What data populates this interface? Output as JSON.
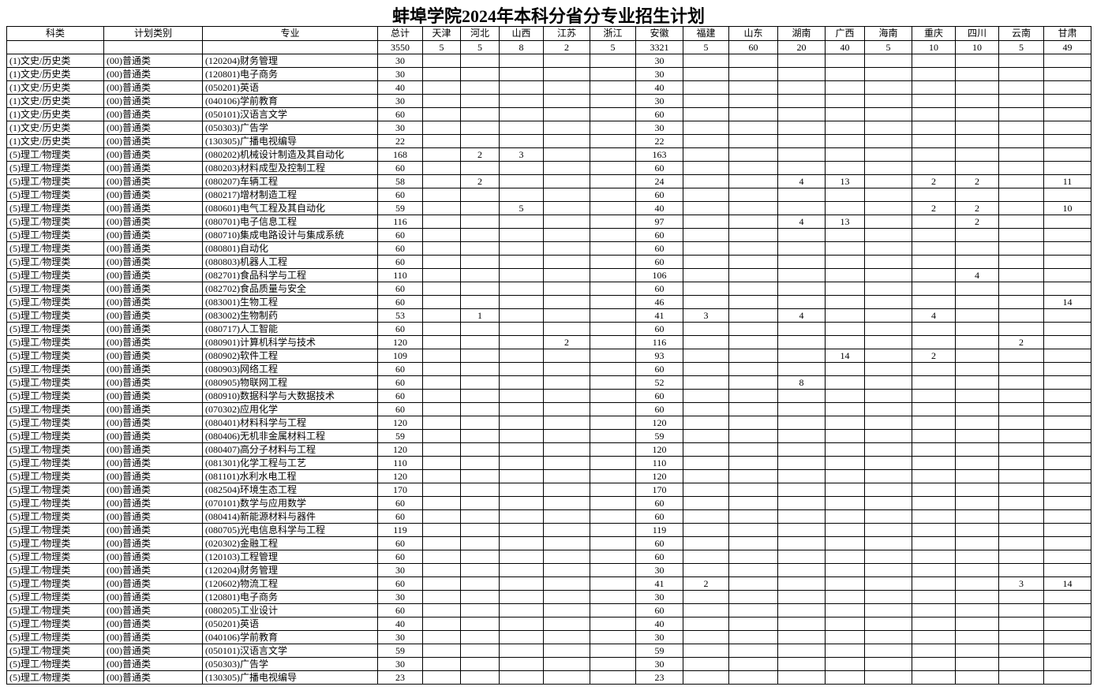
{
  "title": "蚌埠学院2024年本科分省分专业招生计划",
  "table": {
    "columns": [
      "科类",
      "计划类别",
      "专业",
      "总计",
      "天津",
      "河北",
      "山西",
      "江苏",
      "浙江",
      "安徽",
      "福建",
      "山东",
      "湖南",
      "广西",
      "海南",
      "重庆",
      "四川",
      "云南",
      "甘肃"
    ],
    "totals": [
      "",
      "",
      "",
      "3550",
      "5",
      "5",
      "8",
      "2",
      "5",
      "3321",
      "5",
      "60",
      "20",
      "40",
      "5",
      "10",
      "10",
      "5",
      "49"
    ],
    "rows": [
      [
        "(1)文史/历史类",
        "(00)普通类",
        "(120204)财务管理",
        "30",
        "",
        "",
        "",
        "",
        "",
        "30",
        "",
        "",
        "",
        "",
        "",
        "",
        "",
        "",
        ""
      ],
      [
        "(1)文史/历史类",
        "(00)普通类",
        "(120801)电子商务",
        "30",
        "",
        "",
        "",
        "",
        "",
        "30",
        "",
        "",
        "",
        "",
        "",
        "",
        "",
        "",
        ""
      ],
      [
        "(1)文史/历史类",
        "(00)普通类",
        "(050201)英语",
        "40",
        "",
        "",
        "",
        "",
        "",
        "40",
        "",
        "",
        "",
        "",
        "",
        "",
        "",
        "",
        ""
      ],
      [
        "(1)文史/历史类",
        "(00)普通类",
        "(040106)学前教育",
        "30",
        "",
        "",
        "",
        "",
        "",
        "30",
        "",
        "",
        "",
        "",
        "",
        "",
        "",
        "",
        ""
      ],
      [
        "(1)文史/历史类",
        "(00)普通类",
        "(050101)汉语言文学",
        "60",
        "",
        "",
        "",
        "",
        "",
        "60",
        "",
        "",
        "",
        "",
        "",
        "",
        "",
        "",
        ""
      ],
      [
        "(1)文史/历史类",
        "(00)普通类",
        "(050303)广告学",
        "30",
        "",
        "",
        "",
        "",
        "",
        "30",
        "",
        "",
        "",
        "",
        "",
        "",
        "",
        "",
        ""
      ],
      [
        "(1)文史/历史类",
        "(00)普通类",
        "(130305)广播电视编导",
        "22",
        "",
        "",
        "",
        "",
        "",
        "22",
        "",
        "",
        "",
        "",
        "",
        "",
        "",
        "",
        ""
      ],
      [
        "(5)理工/物理类",
        "(00)普通类",
        "(080202)机械设计制造及其自动化",
        "168",
        "",
        "2",
        "3",
        "",
        "",
        "163",
        "",
        "",
        "",
        "",
        "",
        "",
        "",
        "",
        ""
      ],
      [
        "(5)理工/物理类",
        "(00)普通类",
        "(080203)材料成型及控制工程",
        "60",
        "",
        "",
        "",
        "",
        "",
        "60",
        "",
        "",
        "",
        "",
        "",
        "",
        "",
        "",
        ""
      ],
      [
        "(5)理工/物理类",
        "(00)普通类",
        "(080207)车辆工程",
        "58",
        "",
        "2",
        "",
        "",
        "",
        "24",
        "",
        "",
        "4",
        "13",
        "",
        "2",
        "2",
        "",
        "11"
      ],
      [
        "(5)理工/物理类",
        "(00)普通类",
        "(080217)增材制造工程",
        "60",
        "",
        "",
        "",
        "",
        "",
        "60",
        "",
        "",
        "",
        "",
        "",
        "",
        "",
        "",
        ""
      ],
      [
        "(5)理工/物理类",
        "(00)普通类",
        "(080601)电气工程及其自动化",
        "59",
        "",
        "",
        "5",
        "",
        "",
        "40",
        "",
        "",
        "",
        "",
        "",
        "2",
        "2",
        "",
        "10"
      ],
      [
        "(5)理工/物理类",
        "(00)普通类",
        "(080701)电子信息工程",
        "116",
        "",
        "",
        "",
        "",
        "",
        "97",
        "",
        "",
        "4",
        "13",
        "",
        "",
        "2",
        "",
        ""
      ],
      [
        "(5)理工/物理类",
        "(00)普通类",
        "(080710)集成电路设计与集成系统",
        "60",
        "",
        "",
        "",
        "",
        "",
        "60",
        "",
        "",
        "",
        "",
        "",
        "",
        "",
        "",
        ""
      ],
      [
        "(5)理工/物理类",
        "(00)普通类",
        "(080801)自动化",
        "60",
        "",
        "",
        "",
        "",
        "",
        "60",
        "",
        "",
        "",
        "",
        "",
        "",
        "",
        "",
        ""
      ],
      [
        "(5)理工/物理类",
        "(00)普通类",
        "(080803)机器人工程",
        "60",
        "",
        "",
        "",
        "",
        "",
        "60",
        "",
        "",
        "",
        "",
        "",
        "",
        "",
        "",
        ""
      ],
      [
        "(5)理工/物理类",
        "(00)普通类",
        "(082701)食品科学与工程",
        "110",
        "",
        "",
        "",
        "",
        "",
        "106",
        "",
        "",
        "",
        "",
        "",
        "",
        "4",
        "",
        ""
      ],
      [
        "(5)理工/物理类",
        "(00)普通类",
        "(082702)食品质量与安全",
        "60",
        "",
        "",
        "",
        "",
        "",
        "60",
        "",
        "",
        "",
        "",
        "",
        "",
        "",
        "",
        ""
      ],
      [
        "(5)理工/物理类",
        "(00)普通类",
        "(083001)生物工程",
        "60",
        "",
        "",
        "",
        "",
        "",
        "46",
        "",
        "",
        "",
        "",
        "",
        "",
        "",
        "",
        "14"
      ],
      [
        "(5)理工/物理类",
        "(00)普通类",
        "(083002)生物制药",
        "53",
        "",
        "1",
        "",
        "",
        "",
        "41",
        "3",
        "",
        "4",
        "",
        "",
        "4",
        "",
        "",
        ""
      ],
      [
        "(5)理工/物理类",
        "(00)普通类",
        "(080717)人工智能",
        "60",
        "",
        "",
        "",
        "",
        "",
        "60",
        "",
        "",
        "",
        "",
        "",
        "",
        "",
        "",
        ""
      ],
      [
        "(5)理工/物理类",
        "(00)普通类",
        "(080901)计算机科学与技术",
        "120",
        "",
        "",
        "",
        "2",
        "",
        "116",
        "",
        "",
        "",
        "",
        "",
        "",
        "",
        "2",
        ""
      ],
      [
        "(5)理工/物理类",
        "(00)普通类",
        "(080902)软件工程",
        "109",
        "",
        "",
        "",
        "",
        "",
        "93",
        "",
        "",
        "",
        "14",
        "",
        "2",
        "",
        "",
        ""
      ],
      [
        "(5)理工/物理类",
        "(00)普通类",
        "(080903)网络工程",
        "60",
        "",
        "",
        "",
        "",
        "",
        "60",
        "",
        "",
        "",
        "",
        "",
        "",
        "",
        "",
        ""
      ],
      [
        "(5)理工/物理类",
        "(00)普通类",
        "(080905)物联网工程",
        "60",
        "",
        "",
        "",
        "",
        "",
        "52",
        "",
        "",
        "8",
        "",
        "",
        "",
        "",
        "",
        ""
      ],
      [
        "(5)理工/物理类",
        "(00)普通类",
        "(080910)数据科学与大数据技术",
        "60",
        "",
        "",
        "",
        "",
        "",
        "60",
        "",
        "",
        "",
        "",
        "",
        "",
        "",
        "",
        ""
      ],
      [
        "(5)理工/物理类",
        "(00)普通类",
        "(070302)应用化学",
        "60",
        "",
        "",
        "",
        "",
        "",
        "60",
        "",
        "",
        "",
        "",
        "",
        "",
        "",
        "",
        ""
      ],
      [
        "(5)理工/物理类",
        "(00)普通类",
        "(080401)材料科学与工程",
        "120",
        "",
        "",
        "",
        "",
        "",
        "120",
        "",
        "",
        "",
        "",
        "",
        "",
        "",
        "",
        ""
      ],
      [
        "(5)理工/物理类",
        "(00)普通类",
        "(080406)无机非金属材料工程",
        "59",
        "",
        "",
        "",
        "",
        "",
        "59",
        "",
        "",
        "",
        "",
        "",
        "",
        "",
        "",
        ""
      ],
      [
        "(5)理工/物理类",
        "(00)普通类",
        "(080407)高分子材料与工程",
        "120",
        "",
        "",
        "",
        "",
        "",
        "120",
        "",
        "",
        "",
        "",
        "",
        "",
        "",
        "",
        ""
      ],
      [
        "(5)理工/物理类",
        "(00)普通类",
        "(081301)化学工程与工艺",
        "110",
        "",
        "",
        "",
        "",
        "",
        "110",
        "",
        "",
        "",
        "",
        "",
        "",
        "",
        "",
        ""
      ],
      [
        "(5)理工/物理类",
        "(00)普通类",
        "(081101)水利水电工程",
        "120",
        "",
        "",
        "",
        "",
        "",
        "120",
        "",
        "",
        "",
        "",
        "",
        "",
        "",
        "",
        ""
      ],
      [
        "(5)理工/物理类",
        "(00)普通类",
        "(082504)环境生态工程",
        "170",
        "",
        "",
        "",
        "",
        "",
        "170",
        "",
        "",
        "",
        "",
        "",
        "",
        "",
        "",
        ""
      ],
      [
        "(5)理工/物理类",
        "(00)普通类",
        "(070101)数学与应用数学",
        "60",
        "",
        "",
        "",
        "",
        "",
        "60",
        "",
        "",
        "",
        "",
        "",
        "",
        "",
        "",
        ""
      ],
      [
        "(5)理工/物理类",
        "(00)普通类",
        "(080414)新能源材料与器件",
        "60",
        "",
        "",
        "",
        "",
        "",
        "60",
        "",
        "",
        "",
        "",
        "",
        "",
        "",
        "",
        ""
      ],
      [
        "(5)理工/物理类",
        "(00)普通类",
        "(080705)光电信息科学与工程",
        "119",
        "",
        "",
        "",
        "",
        "",
        "119",
        "",
        "",
        "",
        "",
        "",
        "",
        "",
        "",
        ""
      ],
      [
        "(5)理工/物理类",
        "(00)普通类",
        "(020302)金融工程",
        "60",
        "",
        "",
        "",
        "",
        "",
        "60",
        "",
        "",
        "",
        "",
        "",
        "",
        "",
        "",
        ""
      ],
      [
        "(5)理工/物理类",
        "(00)普通类",
        "(120103)工程管理",
        "60",
        "",
        "",
        "",
        "",
        "",
        "60",
        "",
        "",
        "",
        "",
        "",
        "",
        "",
        "",
        ""
      ],
      [
        "(5)理工/物理类",
        "(00)普通类",
        "(120204)财务管理",
        "30",
        "",
        "",
        "",
        "",
        "",
        "30",
        "",
        "",
        "",
        "",
        "",
        "",
        "",
        "",
        ""
      ],
      [
        "(5)理工/物理类",
        "(00)普通类",
        "(120602)物流工程",
        "60",
        "",
        "",
        "",
        "",
        "",
        "41",
        "2",
        "",
        "",
        "",
        "",
        "",
        "",
        "3",
        "14"
      ],
      [
        "(5)理工/物理类",
        "(00)普通类",
        "(120801)电子商务",
        "30",
        "",
        "",
        "",
        "",
        "",
        "30",
        "",
        "",
        "",
        "",
        "",
        "",
        "",
        "",
        ""
      ],
      [
        "(5)理工/物理类",
        "(00)普通类",
        "(080205)工业设计",
        "60",
        "",
        "",
        "",
        "",
        "",
        "60",
        "",
        "",
        "",
        "",
        "",
        "",
        "",
        "",
        ""
      ],
      [
        "(5)理工/物理类",
        "(00)普通类",
        "(050201)英语",
        "40",
        "",
        "",
        "",
        "",
        "",
        "40",
        "",
        "",
        "",
        "",
        "",
        "",
        "",
        "",
        ""
      ],
      [
        "(5)理工/物理类",
        "(00)普通类",
        "(040106)学前教育",
        "30",
        "",
        "",
        "",
        "",
        "",
        "30",
        "",
        "",
        "",
        "",
        "",
        "",
        "",
        "",
        ""
      ],
      [
        "(5)理工/物理类",
        "(00)普通类",
        "(050101)汉语言文学",
        "59",
        "",
        "",
        "",
        "",
        "",
        "59",
        "",
        "",
        "",
        "",
        "",
        "",
        "",
        "",
        ""
      ],
      [
        "(5)理工/物理类",
        "(00)普通类",
        "(050303)广告学",
        "30",
        "",
        "",
        "",
        "",
        "",
        "30",
        "",
        "",
        "",
        "",
        "",
        "",
        "",
        "",
        ""
      ],
      [
        "(5)理工/物理类",
        "(00)普通类",
        "(130305)广播电视编导",
        "23",
        "",
        "",
        "",
        "",
        "",
        "23",
        "",
        "",
        "",
        "",
        "",
        "",
        "",
        "",
        ""
      ]
    ]
  }
}
